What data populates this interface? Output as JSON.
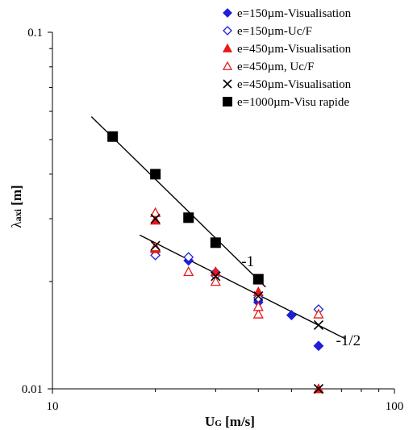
{
  "chart_data": {
    "type": "scatter",
    "xlabel": "U",
    "xlabel_sub": "G",
    "xlabel_unit": "[m/s]",
    "ylabel_main": "λ",
    "ylabel_sub": "axi",
    "ylabel_unit": "[m]",
    "x_scale": "log",
    "y_scale": "log",
    "xlim": [
      10,
      100
    ],
    "ylim": [
      0.01,
      0.1
    ],
    "x_ticks": [
      10,
      100
    ],
    "x_tick_labels": [
      "10",
      "100"
    ],
    "y_ticks": [
      0.01,
      0.1
    ],
    "y_tick_labels": [
      "0.01",
      "0.1"
    ],
    "grid": false,
    "legend_position": "top-right",
    "series": [
      {
        "name": "e=150µm-Visualisation",
        "marker": "diamond-filled",
        "color": "#1f1fd6",
        "points": [
          [
            20,
            0.0243
          ],
          [
            25,
            0.0229
          ],
          [
            30,
            0.0212
          ],
          [
            40,
            0.0175
          ],
          [
            50,
            0.0161
          ],
          [
            60,
            0.0132
          ]
        ]
      },
      {
        "name": "e=150µm-Uc/F",
        "marker": "diamond-open",
        "color": "#1f1fd6",
        "points": [
          [
            20,
            0.0237
          ],
          [
            25,
            0.0234
          ],
          [
            30,
            0.0208
          ],
          [
            40,
            0.018
          ],
          [
            60,
            0.0167
          ]
        ]
      },
      {
        "name": "e=450µm-Visualisation",
        "marker": "triangle-filled",
        "color": "#e81a1a",
        "points": [
          [
            20,
            0.0297
          ],
          [
            20,
            0.0247
          ],
          [
            30,
            0.0213
          ],
          [
            40,
            0.0187
          ],
          [
            60,
            0.01
          ]
        ]
      },
      {
        "name": "e=450µm, Uc/F",
        "marker": "triangle-open",
        "color": "#e81a1a",
        "points": [
          [
            20,
            0.0312
          ],
          [
            20,
            0.025
          ],
          [
            25,
            0.0213
          ],
          [
            30,
            0.02
          ],
          [
            40,
            0.0162
          ],
          [
            40,
            0.017
          ],
          [
            60,
            0.0162
          ]
        ]
      },
      {
        "name": "e=450µm-Visualisation",
        "marker": "x",
        "color": "#000000",
        "points": [
          [
            20,
            0.03
          ],
          [
            20,
            0.0252
          ],
          [
            30,
            0.0207
          ],
          [
            40,
            0.0182
          ],
          [
            60,
            0.0151
          ],
          [
            60,
            0.01
          ]
        ]
      },
      {
        "name": "e=1000µm-Visu rapide",
        "marker": "square-filled",
        "color": "#000000",
        "points": [
          [
            15,
            0.051
          ],
          [
            20,
            0.04
          ],
          [
            25,
            0.0302
          ],
          [
            30,
            0.0257
          ],
          [
            40,
            0.0203
          ]
        ]
      }
    ],
    "fit_lines": [
      {
        "label": "-1",
        "from": [
          13,
          0.058
        ],
        "to": [
          42,
          0.0193
        ]
      },
      {
        "label": "-1/2",
        "from": [
          18,
          0.027
        ],
        "to": [
          72,
          0.0138
        ]
      }
    ]
  }
}
